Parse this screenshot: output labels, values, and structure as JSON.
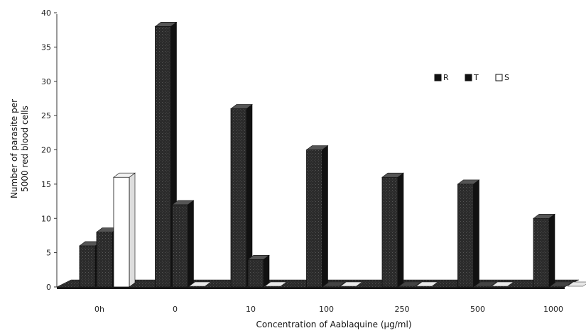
{
  "chart_data": {
    "type": "bar",
    "title": "",
    "xlabel": "Concentration of Aablaquine (µg/ml)",
    "ylabel_line1": "Number of parasite per",
    "ylabel_line2": "5000 red blood cells",
    "ylim": [
      0,
      40
    ],
    "yticks": [
      0,
      5,
      10,
      15,
      20,
      25,
      30,
      35,
      40
    ],
    "categories": [
      "0h",
      "0",
      "10",
      "100",
      "250",
      "500",
      "1000"
    ],
    "series": [
      {
        "name": "R",
        "values": [
          6,
          38,
          26,
          20,
          16,
          15,
          10
        ],
        "color": "#2a2a2a"
      },
      {
        "name": "T",
        "values": [
          8,
          12,
          4,
          0,
          0,
          0,
          0
        ],
        "color": "#1a1a1a"
      },
      {
        "name": "S",
        "values": [
          16,
          0,
          0,
          0,
          0,
          0,
          0
        ],
        "color": "#ffffff"
      }
    ],
    "legend_position": "right",
    "grid": false,
    "style": "3d-bars"
  }
}
